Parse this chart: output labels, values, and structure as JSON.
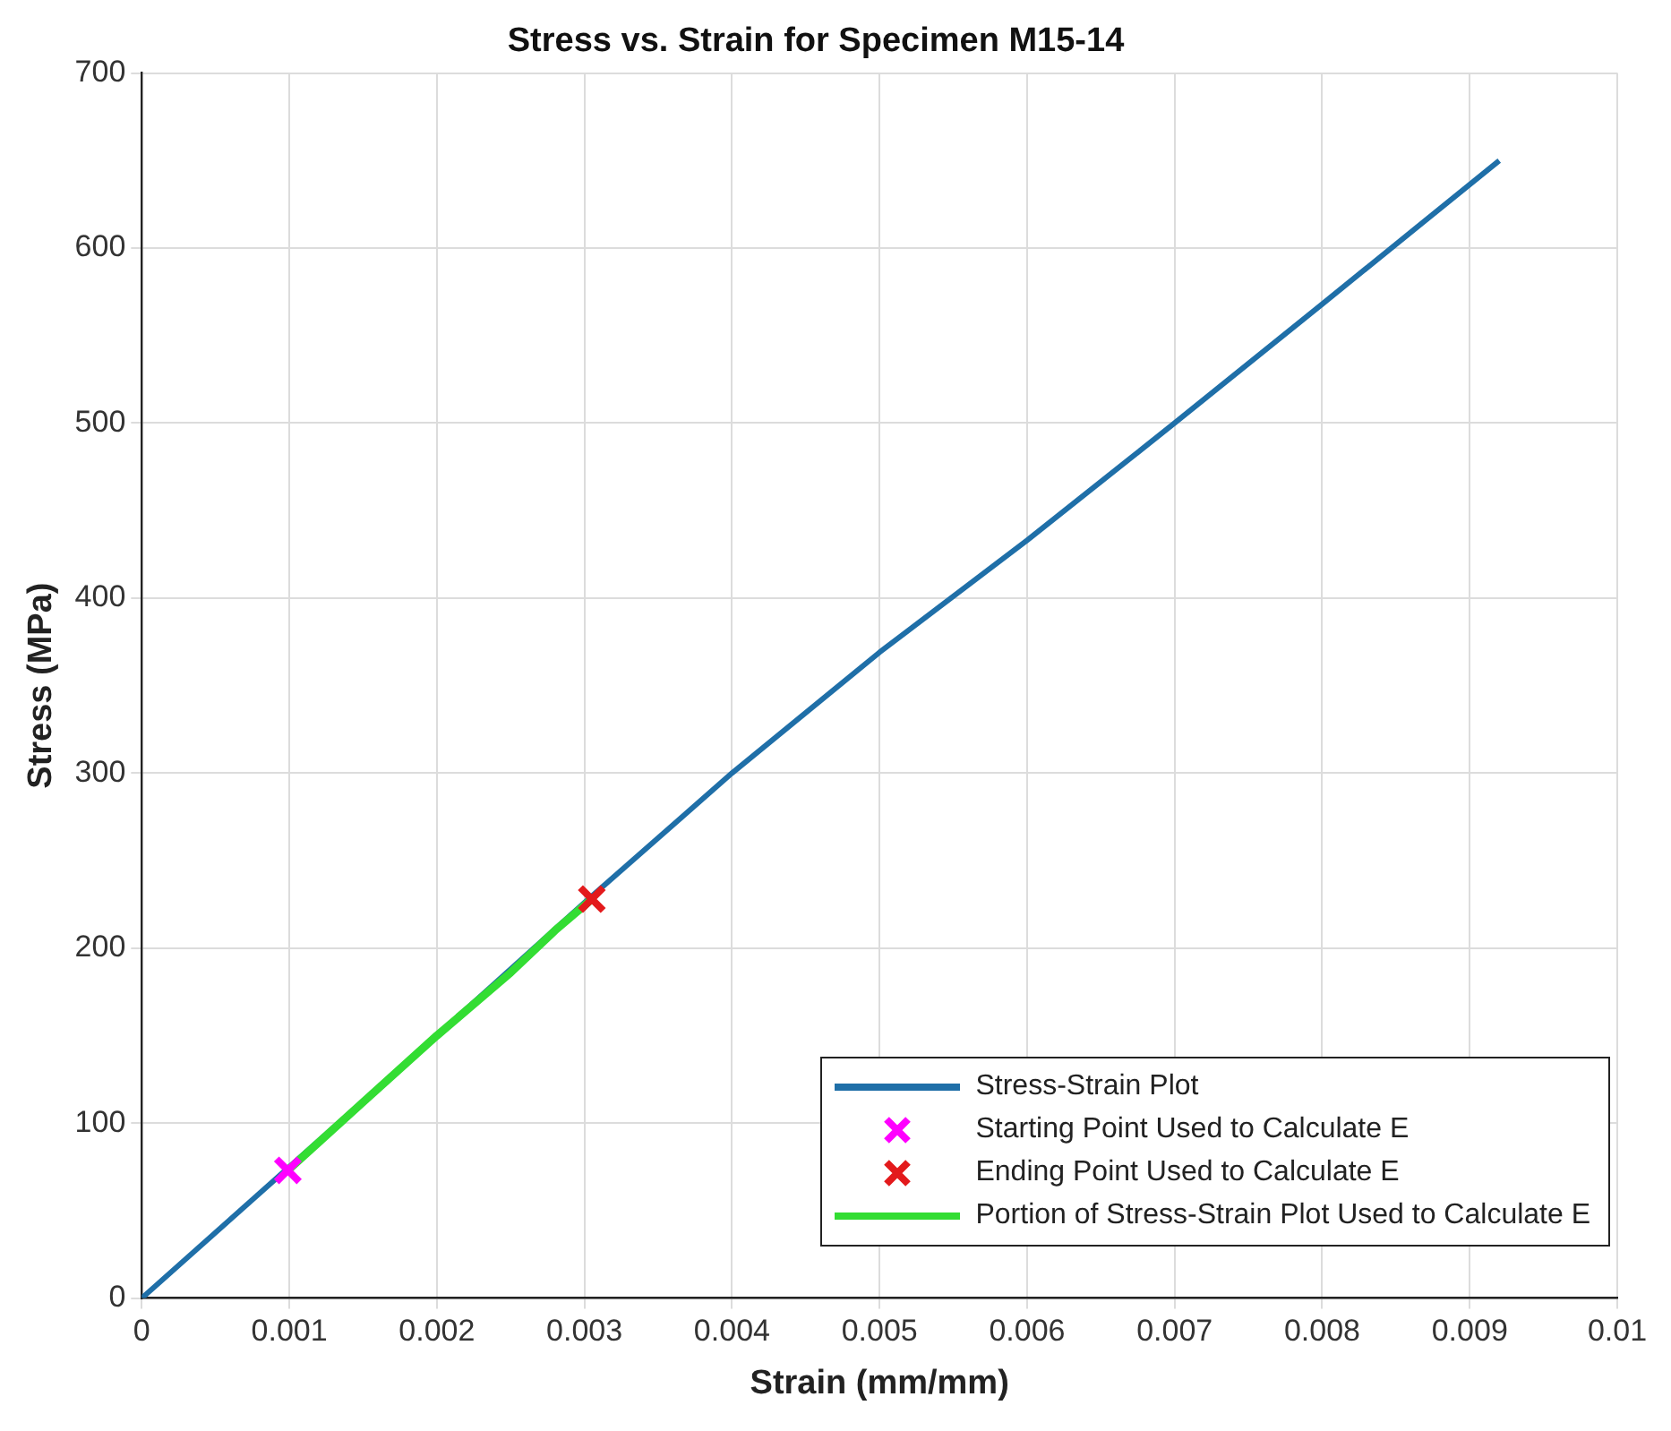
{
  "chart_data": {
    "type": "line",
    "title": "Stress vs. Strain for Specimen M15-14",
    "xlabel": "Strain (mm/mm)",
    "ylabel": "Stress (MPa)",
    "xlim": [
      0,
      0.01
    ],
    "xticks": [
      0,
      0.001,
      0.002,
      0.003,
      0.004,
      0.005,
      0.006,
      0.007,
      0.008,
      0.009,
      0.01
    ],
    "ylim": [
      0,
      700
    ],
    "yticks": [
      0,
      100,
      200,
      300,
      400,
      500,
      600,
      700
    ],
    "grid": true,
    "legend": "bottom right",
    "series": [
      {
        "name": "Stress-Strain Plot",
        "type": "line",
        "color": "#1f6fa8",
        "x": [
          0,
          0.001,
          0.002,
          0.003,
          0.004,
          0.005,
          0.006,
          0.007,
          0.008,
          0.0092
        ],
        "values": [
          0,
          75,
          150,
          226,
          300,
          369,
          433,
          500,
          568,
          650
        ]
      },
      {
        "name": "Starting Point Used to Calculate E",
        "type": "scatter",
        "marker": "cross",
        "color": "#ff00ff",
        "x": [
          0.00099
        ],
        "values": [
          73
        ]
      },
      {
        "name": "Ending Point Used to Calculate E",
        "type": "scatter",
        "marker": "cross",
        "color": "#e31a1c",
        "x": [
          0.00305
        ],
        "values": [
          228
        ]
      },
      {
        "name": "Portion of Stress-Strain Plot Used to Calculate E",
        "type": "line",
        "color": "#33dd33",
        "x": [
          0.00099,
          0.0015,
          0.002,
          0.0025,
          0.0028,
          0.00305
        ],
        "values": [
          73,
          112,
          150,
          186,
          210,
          228
        ]
      }
    ]
  }
}
